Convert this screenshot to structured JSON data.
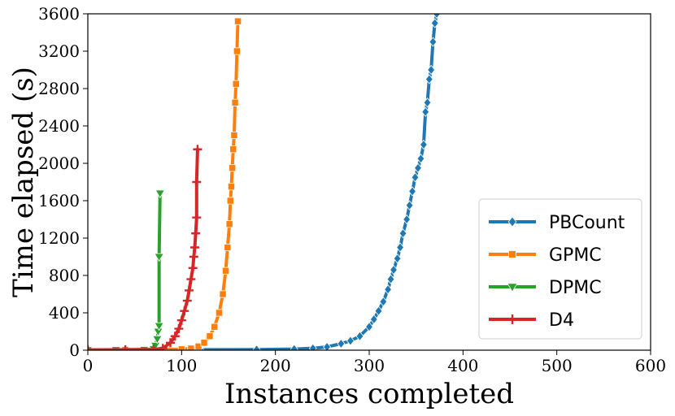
{
  "chart_data": {
    "type": "line",
    "title": "",
    "xlabel": "Instances completed",
    "ylabel": "Time elapsed (s)",
    "xlim": [
      0,
      600
    ],
    "ylim": [
      0,
      3600
    ],
    "xticks": [
      0,
      100,
      200,
      300,
      400,
      500,
      600
    ],
    "yticks": [
      0,
      400,
      800,
      1200,
      1600,
      2000,
      2400,
      2800,
      3200,
      3600
    ],
    "grid": false,
    "legend_position": "lower-right",
    "series": [
      {
        "name": "PBCount",
        "color": "#1f77b4",
        "marker": "diamond",
        "x": [
          0,
          60,
          120,
          180,
          220,
          240,
          255,
          270,
          280,
          290,
          300,
          305,
          310,
          315,
          320,
          323,
          326,
          330,
          333,
          336,
          340,
          343,
          346,
          349,
          352,
          355,
          358,
          360,
          362,
          364,
          366,
          368,
          370,
          372
        ],
        "y": [
          3,
          4,
          5,
          7,
          12,
          20,
          35,
          70,
          100,
          150,
          250,
          330,
          420,
          520,
          650,
          760,
          860,
          980,
          1100,
          1250,
          1400,
          1550,
          1700,
          1850,
          1950,
          2050,
          2200,
          2550,
          2650,
          2900,
          3000,
          3300,
          3500,
          3600
        ]
      },
      {
        "name": "GPMC",
        "color": "#ff7f0e",
        "marker": "square",
        "x": [
          0,
          40,
          80,
          100,
          110,
          118,
          124,
          130,
          135,
          140,
          144,
          147,
          149,
          151,
          152,
          153,
          154,
          155,
          156,
          157,
          158,
          159,
          160
        ],
        "y": [
          3,
          4,
          6,
          10,
          18,
          40,
          80,
          150,
          250,
          400,
          600,
          850,
          1100,
          1350,
          1600,
          1750,
          1950,
          2150,
          2300,
          2650,
          2850,
          3200,
          3520
        ]
      },
      {
        "name": "DPMC",
        "color": "#2ca02c",
        "marker": "triangle_down",
        "x": [
          0,
          30,
          60,
          70,
          72,
          74,
          75,
          76,
          76,
          77
        ],
        "y": [
          3,
          4,
          6,
          12,
          50,
          120,
          200,
          260,
          1000,
          1680
        ]
      },
      {
        "name": "D4",
        "color": "#d62728",
        "marker": "plus",
        "x": [
          0,
          40,
          70,
          80,
          88,
          93,
          97,
          100,
          103,
          106,
          108,
          110,
          112,
          113,
          114,
          115,
          116,
          116,
          117
        ],
        "y": [
          3,
          5,
          8,
          20,
          80,
          150,
          230,
          320,
          420,
          530,
          640,
          760,
          880,
          1000,
          1100,
          1250,
          1420,
          1800,
          2150
        ]
      }
    ]
  }
}
